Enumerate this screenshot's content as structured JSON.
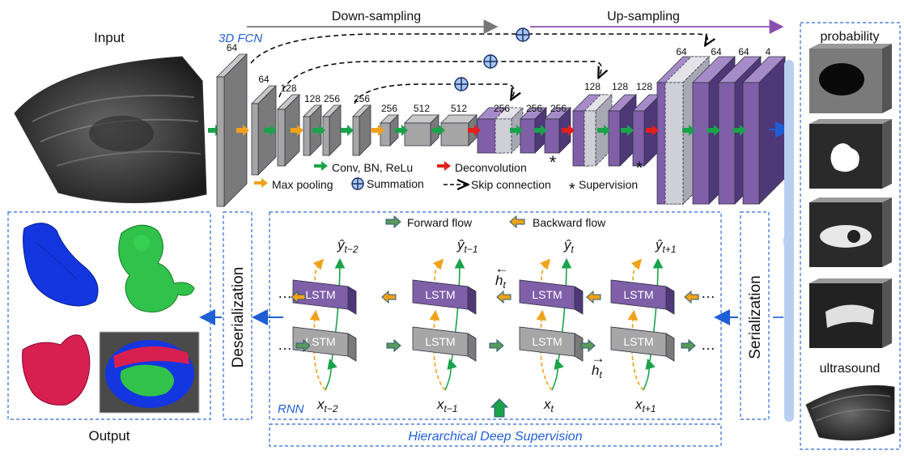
{
  "colors": {
    "grey_block": "#a6a6a6",
    "purple_block": "#7f5fa8",
    "blue_text": "#1f5fd6",
    "green_arrow": "#1aa34a",
    "orange_arrow": "#f0a21a",
    "red_arrow": "#e0201a",
    "panel_border": "#2e6ad6",
    "seg_blue": "#1436e0",
    "seg_green": "#30c24a",
    "seg_red": "#d82050"
  },
  "icons": [
    "conv-arrow-icon",
    "maxpool-arrow-icon",
    "deconv-arrow-icon",
    "summation-icon",
    "skip-connection-icon",
    "supervision-star-icon",
    "forward-flow-icon",
    "backward-flow-icon"
  ],
  "labels": {
    "input": "Input",
    "output": "Output",
    "fcn": "3D FCN",
    "down": "Down-sampling",
    "up": "Up-sampling",
    "probability": "probability",
    "ultrasound": "ultrasound",
    "serialization": "Serialization",
    "deserialization": "Deserialization",
    "rnn": "RNN",
    "hds": "Hierarchical Deep Supervision"
  },
  "channels": {
    "down": [
      "64",
      "64",
      "128",
      "128",
      "256",
      "256",
      "256",
      "512",
      "512"
    ],
    "up": [
      "256",
      "256",
      "256",
      "128",
      "128",
      "128",
      "64",
      "64",
      "64",
      "4"
    ]
  },
  "legend": {
    "conv": "Conv, BN, ReLu",
    "deconv": "Deconvolution",
    "maxpool": "Max pooling",
    "sum": "Summation",
    "skip": "Skip connection",
    "supervision": "Supervision",
    "forward": "Forward flow",
    "backward": "Backward flow"
  },
  "rnn": {
    "cell": "LSTM",
    "ellipsis": "…",
    "outputs": [
      "ŷ",
      "ŷ",
      "ŷ",
      "ŷ"
    ],
    "output_subs": [
      "t−2",
      "t−1",
      "t",
      "t+1"
    ],
    "inputs": [
      "x",
      "x",
      "x",
      "x"
    ],
    "input_subs": [
      "t−2",
      "t−1",
      "t",
      "t+1"
    ],
    "h_back": "h",
    "h_back_sub": "t",
    "h_back_arrow": "←",
    "h_fwd": "h",
    "h_fwd_sub": "t",
    "h_fwd_arrow": "→"
  },
  "star": "*"
}
